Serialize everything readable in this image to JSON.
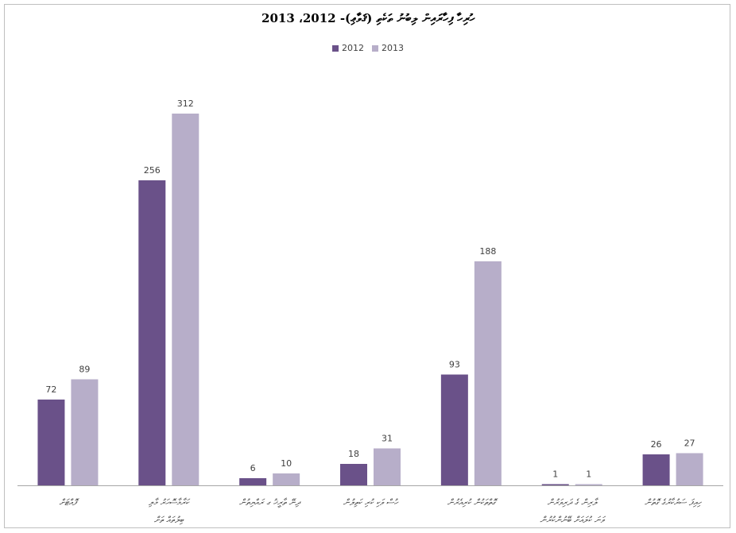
{
  "chart_data": {
    "type": "bar",
    "title": "ހުރިހާ ފިހާރައިން ލިބުނު ތަކެތި (ޤަވާޢި)- 2012، 2013",
    "categories": [
      [
        "ފޮއްޓަށް"
      ],
      [
        "ކަރާމާސޮހަރު މާލި",
        "ބިލުތައް ތަށް"
      ],
      [
        "ދިނޭ ތާރީޚު ގ ރައްޔިތުން"
      ],
      [
        "ހުސް ވަކި ކުރި ކަތިލުން"
      ],
      [
        "ގޮތްތަކުން ކުރިއެރުން"
      ],
      [
        "ލާރިން ގެ ދަރިވަރުން",
        "ވަނަ ކުލައަށް ބޭނުންކުރުން"
      ],
      [
        "ހިއިފަ ސަރުކާރުގެ ގޮތުން"
      ]
    ],
    "series": [
      {
        "name": "2012",
        "color": "#6a5189",
        "values": [
          72,
          256,
          6,
          18,
          93,
          1,
          26
        ]
      },
      {
        "name": "2013",
        "color": "#b7aec9",
        "values": [
          89,
          312,
          10,
          31,
          188,
          1,
          27
        ]
      }
    ],
    "ylim": [
      0,
      320
    ],
    "grid": false,
    "legend_position": "top-center",
    "xlabel": "",
    "ylabel": ""
  }
}
